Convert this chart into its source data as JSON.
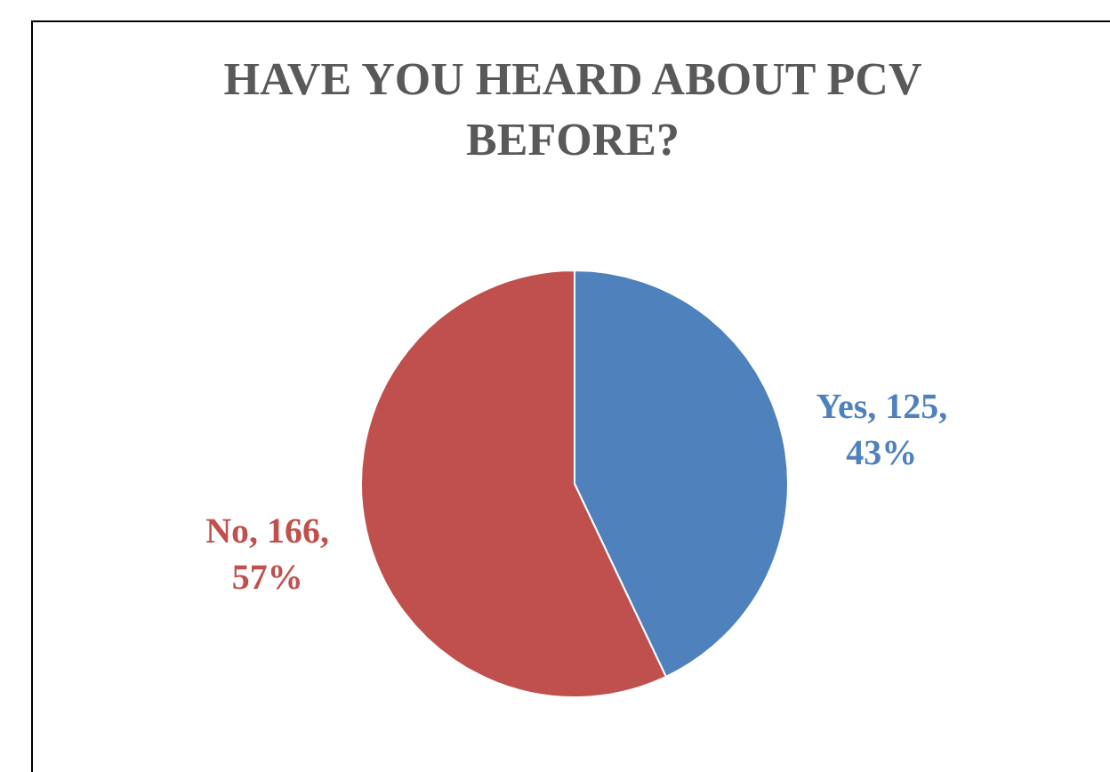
{
  "chart_data": {
    "type": "pie",
    "title": "HAVE YOU HEARD ABOUT PCV BEFORE?",
    "categories": [
      "Yes",
      "No"
    ],
    "values": [
      125,
      166
    ],
    "colors": [
      "#4f81bd",
      "#c0504d"
    ],
    "value_labels": [
      "125, 43%",
      "166, 57%"
    ]
  }
}
